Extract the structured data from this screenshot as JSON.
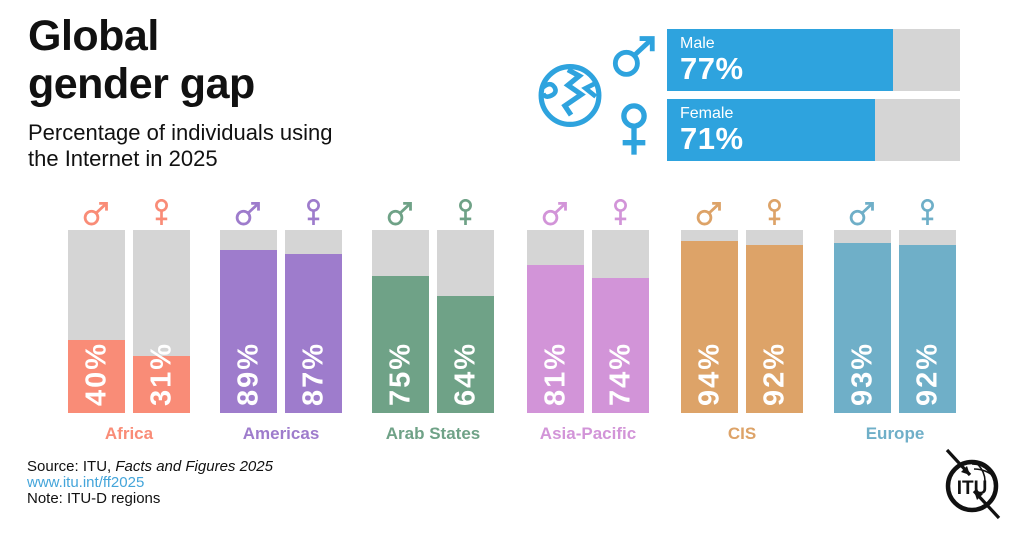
{
  "title": {
    "line1": "Global",
    "line2": "gender gap"
  },
  "subtitle": {
    "line1": "Percentage of individuals using",
    "line2": "the Internet in 2025"
  },
  "colors": {
    "global_blue": "#2EA3DE",
    "track_gray": "#D5D5D5",
    "link_blue": "#44A5DA",
    "text_black": "#111111"
  },
  "global": {
    "male": {
      "label": "Male",
      "value": 77,
      "value_label": "77%"
    },
    "female": {
      "label": "Female",
      "value": 71,
      "value_label": "71%"
    }
  },
  "regions": [
    {
      "name": "Africa",
      "color": "#F98C77",
      "male": 40,
      "female": 31,
      "male_label": "40%",
      "female_label": "31%"
    },
    {
      "name": "Americas",
      "color": "#9E7CCC",
      "male": 89,
      "female": 87,
      "male_label": "89%",
      "female_label": "87%"
    },
    {
      "name": "Arab States",
      "color": "#6FA287",
      "male": 75,
      "female": 64,
      "male_label": "75%",
      "female_label": "64%"
    },
    {
      "name": "Asia-Pacific",
      "color": "#D294D8",
      "male": 81,
      "female": 74,
      "male_label": "81%",
      "female_label": "74%"
    },
    {
      "name": "CIS",
      "color": "#DDA368",
      "male": 94,
      "female": 92,
      "male_label": "94%",
      "female_label": "92%"
    },
    {
      "name": "Europe",
      "color": "#6FAFC8",
      "male": 93,
      "female": 92,
      "male_label": "93%",
      "female_label": "92%"
    }
  ],
  "footer": {
    "source_prefix": "Source: ITU, ",
    "source_title": "Facts and Figures 2025",
    "link": "www.itu.int/ff2025",
    "note": "Note: ITU-D regions"
  },
  "logo_text": "ITU",
  "chart_data": {
    "type": "bar",
    "title": "Global gender gap",
    "subtitle": "Percentage of individuals using the Internet in 2025",
    "unit": "%",
    "ylim": [
      0,
      100
    ],
    "grid": false,
    "bars_direction": "vertical",
    "global_summary": {
      "direction": "horizontal",
      "Male": 77,
      "Female": 71
    },
    "categories": [
      "Africa",
      "Americas",
      "Arab States",
      "Asia-Pacific",
      "CIS",
      "Europe"
    ],
    "series": [
      {
        "name": "Male",
        "values": [
          40,
          89,
          75,
          81,
          94,
          93
        ]
      },
      {
        "name": "Female",
        "values": [
          31,
          87,
          64,
          74,
          92,
          92
        ]
      }
    ],
    "category_colors": [
      "#F98C77",
      "#9E7CCC",
      "#6FA287",
      "#D294D8",
      "#DDA368",
      "#6FAFC8"
    ],
    "annotations": [
      "Source: ITU, Facts and Figures 2025",
      "www.itu.int/ff2025",
      "Note: ITU-D regions"
    ]
  }
}
